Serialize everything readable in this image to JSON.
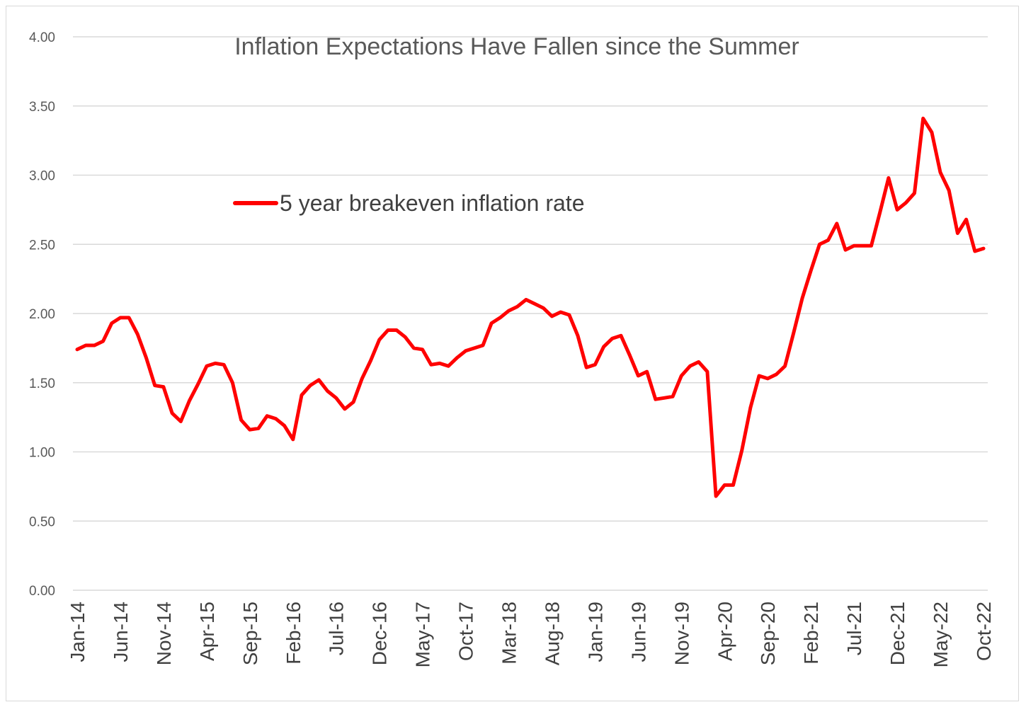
{
  "chart_data": {
    "type": "line",
    "title": "Inflation Expectations Have Fallen since the Summer",
    "legend": {
      "position": "upper-left-inside"
    },
    "y_ticks": [
      "0.00",
      "0.50",
      "1.00",
      "1.50",
      "2.00",
      "2.50",
      "3.00",
      "3.50",
      "4.00"
    ],
    "ylim": [
      0,
      4
    ],
    "x_tick_labels": [
      "Jan-14",
      "Jun-14",
      "Nov-14",
      "Apr-15",
      "Sep-15",
      "Feb-16",
      "Jul-16",
      "Dec-16",
      "May-17",
      "Oct-17",
      "Mar-18",
      "Aug-18",
      "Jan-19",
      "Jun-19",
      "Nov-19",
      "Apr-20",
      "Sep-20",
      "Feb-21",
      "Jul-21",
      "Dec-21",
      "May-22",
      "Oct-22"
    ],
    "x_range": [
      "Jan-14",
      "Oct-22"
    ],
    "grid": true,
    "series": [
      {
        "name": "5 year breakeven inflation rate",
        "color": "#ff0000",
        "start": "Jan-14",
        "frequency": "monthly",
        "values": [
          1.74,
          1.77,
          1.77,
          1.8,
          1.93,
          1.97,
          1.97,
          1.85,
          1.68,
          1.48,
          1.47,
          1.28,
          1.22,
          1.37,
          1.49,
          1.62,
          1.64,
          1.63,
          1.5,
          1.23,
          1.16,
          1.17,
          1.26,
          1.24,
          1.19,
          1.09,
          1.41,
          1.48,
          1.52,
          1.44,
          1.39,
          1.31,
          1.36,
          1.53,
          1.66,
          1.81,
          1.88,
          1.88,
          1.83,
          1.75,
          1.74,
          1.63,
          1.64,
          1.62,
          1.68,
          1.73,
          1.75,
          1.77,
          1.93,
          1.97,
          2.02,
          2.05,
          2.1,
          2.07,
          2.04,
          1.98,
          2.01,
          1.99,
          1.84,
          1.61,
          1.63,
          1.76,
          1.82,
          1.84,
          1.7,
          1.55,
          1.58,
          1.38,
          1.39,
          1.4,
          1.55,
          1.62,
          1.65,
          1.58,
          0.68,
          0.76,
          0.76,
          1.01,
          1.32,
          1.55,
          1.53,
          1.56,
          1.62,
          1.86,
          2.11,
          2.31,
          2.5,
          2.53,
          2.65,
          2.46,
          2.49,
          2.49,
          2.49,
          2.73,
          2.98,
          2.75,
          2.8,
          2.87,
          3.41,
          3.31,
          3.02,
          2.89,
          2.58,
          2.68,
          2.45,
          2.47
        ]
      }
    ]
  }
}
